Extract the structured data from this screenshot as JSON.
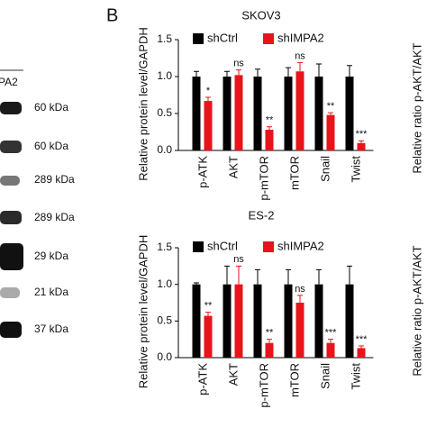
{
  "panel_label": "B",
  "blot": {
    "header": "PA2",
    "labels": [
      "60 kDa",
      "60 kDa",
      "289 kDa",
      "289 kDa",
      "29 kDa",
      "21 kDa",
      "37 kDa"
    ]
  },
  "side_labels": [
    "Relative ratio p-AKT/AKT",
    "Relative ratio p-AKT/AKT"
  ],
  "chart_data": [
    {
      "type": "bar",
      "title": "SKOV3",
      "y_label": "Relative protein level/GAPDH",
      "categories": [
        "p-ATK",
        "AKT",
        "p-mTOR",
        "mTOR",
        "Snail",
        "Twist"
      ],
      "series": [
        {
          "name": "shCtrl",
          "color": "#000000",
          "values": [
            1.0,
            1.0,
            1.0,
            1.0,
            1.0,
            1.0
          ],
          "errors": [
            0.07,
            0.07,
            0.1,
            0.12,
            0.17,
            0.15
          ]
        },
        {
          "name": "shIMPA2",
          "color": "#e8141b",
          "values": [
            0.67,
            1.02,
            0.28,
            1.07,
            0.48,
            0.1
          ],
          "errors": [
            0.05,
            0.07,
            0.04,
            0.12,
            0.03,
            0.03
          ]
        }
      ],
      "annotations": [
        "*",
        "ns",
        "**",
        "ns",
        "**",
        "***"
      ],
      "ylim": [
        0,
        1.5
      ],
      "yticks": [
        {
          "value": 0,
          "label": "0.0"
        },
        {
          "value": 0.5,
          "label": "0.5"
        },
        {
          "value": 1,
          "label": "1.0"
        },
        {
          "value": 1.5,
          "label": "1.5"
        }
      ]
    },
    {
      "type": "bar",
      "title": "ES-2",
      "y_label": "Relative protein level/GAPDH",
      "categories": [
        "p-ATK",
        "AKT",
        "p-mTOR",
        "mTOR",
        "Snail",
        "Twist"
      ],
      "series": [
        {
          "name": "shCtrl",
          "color": "#000000",
          "values": [
            1.0,
            1.0,
            1.0,
            1.0,
            1.0,
            1.0
          ],
          "errors": [
            0.02,
            0.25,
            0.2,
            0.2,
            0.2,
            0.25
          ]
        },
        {
          "name": "shIMPA2",
          "color": "#e8141b",
          "values": [
            0.57,
            1.0,
            0.2,
            0.75,
            0.2,
            0.13
          ],
          "errors": [
            0.05,
            0.25,
            0.05,
            0.1,
            0.05,
            0.03
          ]
        }
      ],
      "annotations": [
        "**",
        "ns",
        "**",
        "ns",
        "***",
        "***"
      ],
      "ylim": [
        0,
        1.5
      ],
      "yticks": [
        {
          "value": 0,
          "label": "0.0"
        },
        {
          "value": 0.5,
          "label": "0.5"
        },
        {
          "value": 1,
          "label": "1.0"
        },
        {
          "value": 1.5,
          "label": "1.5"
        }
      ]
    }
  ]
}
